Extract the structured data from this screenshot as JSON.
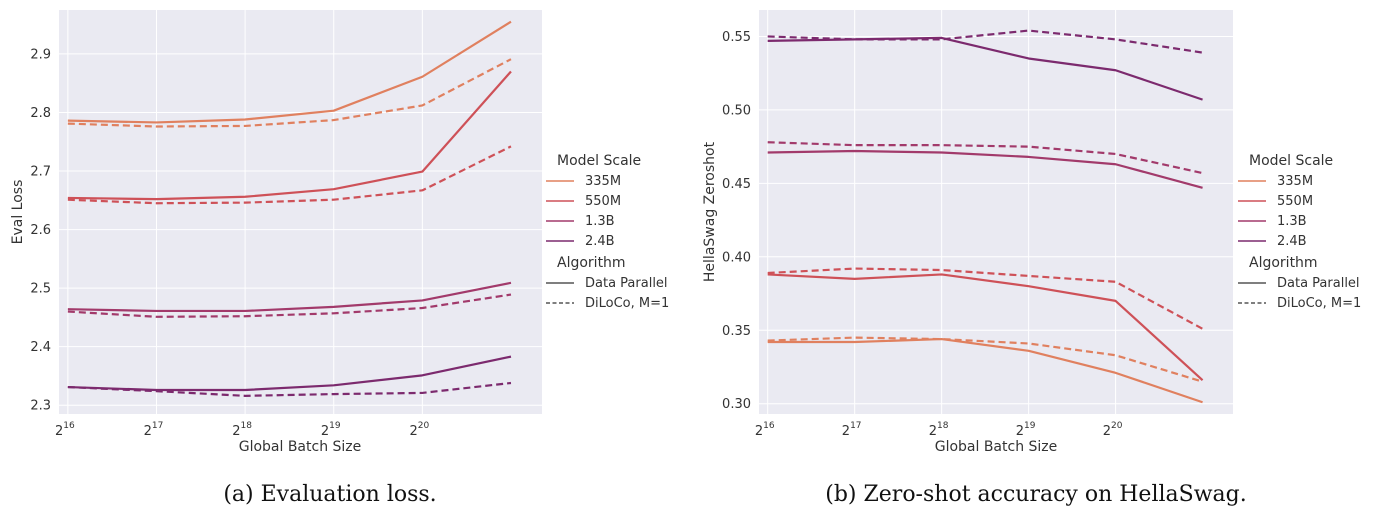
{
  "chart_data": [
    {
      "type": "line",
      "caption": "(a) Evaluation loss.",
      "xlabel": "Global Batch Size",
      "ylabel": "Eval Loss",
      "x_exponents": [
        16,
        17,
        18,
        19,
        20,
        21
      ],
      "x_tick_exponents": [
        16,
        17,
        18,
        19,
        20
      ],
      "x_tick_base": "2",
      "xlim": [
        15.9,
        21.35
      ],
      "ylim": [
        2.285,
        2.975
      ],
      "yticks": [
        2.3,
        2.4,
        2.5,
        2.6,
        2.7,
        2.8,
        2.9
      ],
      "grid": true,
      "series": [
        {
          "name": "335M",
          "algorithm": "Data Parallel",
          "values": [
            2.786,
            2.783,
            2.788,
            2.803,
            2.861,
            2.955
          ]
        },
        {
          "name": "335M",
          "algorithm": "DiLoCo, M=1",
          "values": [
            2.781,
            2.776,
            2.777,
            2.787,
            2.812,
            2.891
          ]
        },
        {
          "name": "550M",
          "algorithm": "Data Parallel",
          "values": [
            2.654,
            2.652,
            2.656,
            2.669,
            2.699,
            2.87
          ]
        },
        {
          "name": "550M",
          "algorithm": "DiLoCo, M=1",
          "values": [
            2.651,
            2.645,
            2.646,
            2.651,
            2.667,
            2.742
          ]
        },
        {
          "name": "1.3B",
          "algorithm": "Data Parallel",
          "values": [
            2.464,
            2.461,
            2.461,
            2.468,
            2.479,
            2.509
          ]
        },
        {
          "name": "1.3B",
          "algorithm": "DiLoCo, M=1",
          "values": [
            2.46,
            2.451,
            2.452,
            2.457,
            2.466,
            2.489
          ]
        },
        {
          "name": "2.4B",
          "algorithm": "Data Parallel",
          "values": [
            2.331,
            2.326,
            2.326,
            2.334,
            2.351,
            2.383
          ]
        },
        {
          "name": "2.4B",
          "algorithm": "DiLoCo, M=1",
          "values": [
            2.331,
            2.324,
            2.316,
            2.319,
            2.321,
            2.338
          ]
        }
      ]
    },
    {
      "type": "line",
      "caption": "(b) Zero-shot accuracy on HellaSwag.",
      "xlabel": "Global Batch Size",
      "ylabel": "HellaSwag Zeroshot",
      "x_exponents": [
        16,
        17,
        18,
        19,
        20,
        21
      ],
      "x_tick_exponents": [
        16,
        17,
        18,
        19,
        20
      ],
      "x_tick_base": "2",
      "xlim": [
        15.9,
        21.35
      ],
      "ylim": [
        0.293,
        0.568
      ],
      "yticks": [
        0.3,
        0.35,
        0.4,
        0.45,
        0.5,
        0.55
      ],
      "grid": true,
      "series": [
        {
          "name": "335M",
          "algorithm": "Data Parallel",
          "values": [
            0.342,
            0.342,
            0.344,
            0.336,
            0.321,
            0.301
          ]
        },
        {
          "name": "335M",
          "algorithm": "DiLoCo, M=1",
          "values": [
            0.343,
            0.345,
            0.344,
            0.341,
            0.333,
            0.315
          ]
        },
        {
          "name": "550M",
          "algorithm": "Data Parallel",
          "values": [
            0.388,
            0.385,
            0.388,
            0.38,
            0.37,
            0.316
          ]
        },
        {
          "name": "550M",
          "algorithm": "DiLoCo, M=1",
          "values": [
            0.389,
            0.392,
            0.391,
            0.387,
            0.383,
            0.351
          ]
        },
        {
          "name": "1.3B",
          "algorithm": "Data Parallel",
          "values": [
            0.471,
            0.472,
            0.471,
            0.468,
            0.463,
            0.447
          ]
        },
        {
          "name": "1.3B",
          "algorithm": "DiLoCo, M=1",
          "values": [
            0.478,
            0.476,
            0.476,
            0.475,
            0.47,
            0.457
          ]
        },
        {
          "name": "2.4B",
          "algorithm": "Data Parallel",
          "values": [
            0.547,
            0.548,
            0.549,
            0.535,
            0.527,
            0.507
          ]
        },
        {
          "name": "2.4B",
          "algorithm": "DiLoCo, M=1",
          "values": [
            0.55,
            0.548,
            0.548,
            0.554,
            0.548,
            0.539
          ]
        }
      ]
    }
  ],
  "legend": {
    "placement": "right of each plot",
    "scale_title": "Model Scale",
    "scale_items": [
      {
        "label": "335M",
        "color": "#e0805f"
      },
      {
        "label": "550M",
        "color": "#ce5158"
      },
      {
        "label": "1.3B",
        "color": "#a23a6b"
      },
      {
        "label": "2.4B",
        "color": "#7c2a6e"
      }
    ],
    "algo_title": "Algorithm",
    "algo_items": [
      {
        "label": "Data Parallel",
        "style": "solid"
      },
      {
        "label": "DiLoCo, M=1",
        "style": "dashed"
      }
    ]
  },
  "colors": {
    "335M": "#e0805f",
    "550M": "#ce5158",
    "1.3B": "#a23a6b",
    "2.4B": "#7c2a6e",
    "plot_bg": "#eaeaf2",
    "grid": "#ffffff"
  }
}
